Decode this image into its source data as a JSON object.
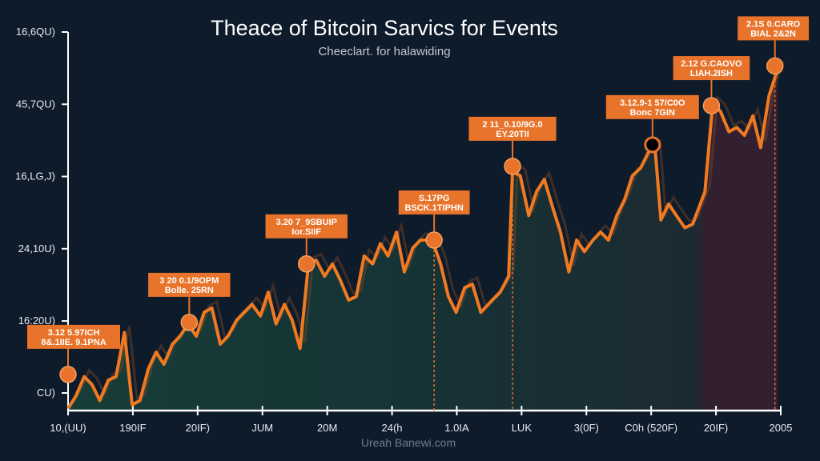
{
  "chart_data": {
    "type": "line",
    "title": "Theace of Bitcoin Sarvics for Events",
    "subtitle": "Cheeclart. for halawiding",
    "footer": "Ureah Banewi.com",
    "xlabel": "",
    "ylabel": "",
    "x_tick_labels": [
      "10,(UU)",
      "190IF",
      "20IF)",
      "JUM",
      "20M",
      "24(h",
      "1.0IA",
      "LUK",
      "3(0F)",
      "C0h (520F)",
      "20IF)",
      "2005"
    ],
    "y_ticks": [
      {
        "value": 0,
        "label": "CU)"
      },
      {
        "value": 1,
        "label": "16:20U)"
      },
      {
        "value": 2,
        "label": "24,10U)"
      },
      {
        "value": 3,
        "label": "16,LG,J)"
      },
      {
        "value": 4,
        "label": "45,7QU)"
      },
      {
        "value": 5,
        "label": "16,6QU)"
      }
    ],
    "xlim": [
      0,
      11
    ],
    "ylim": [
      -0.24,
      5.0
    ],
    "grid": false,
    "colors": {
      "line": "#f07a22",
      "background": "#0e1b2b",
      "label_box": "#e8732a",
      "area_left": "#1e5a43",
      "area_right": "#4a2233"
    },
    "series": [
      {
        "x": [
          0,
          0.12,
          0.25,
          0.37,
          0.49,
          0.62,
          0.74,
          0.87,
          0.99,
          1.11,
          1.24,
          1.36,
          1.48,
          1.61,
          1.73,
          1.85,
          1.98,
          2.1,
          2.22,
          2.35,
          2.47,
          2.6,
          2.72,
          2.84,
          2.97,
          3.09,
          3.21,
          3.34,
          3.46,
          3.58,
          3.71,
          3.83,
          3.96,
          4.08,
          4.2,
          4.33,
          4.45,
          4.57,
          4.7,
          4.82,
          4.94,
          5.07,
          5.19,
          5.32,
          5.44,
          5.62,
          5.75,
          5.87,
          5.99,
          6.12,
          6.24,
          6.37,
          6.55,
          6.67,
          6.8,
          6.86,
          6.98,
          7.11,
          7.23,
          7.35,
          7.48,
          7.6,
          7.73,
          7.85,
          7.97,
          8.1,
          8.22,
          8.34,
          8.47,
          8.59,
          8.71,
          8.84,
          8.96,
          9.06,
          9.15,
          9.27,
          9.39,
          9.52,
          9.64,
          9.83,
          9.95,
          10.07,
          10.2,
          10.32,
          10.44,
          10.57,
          10.69,
          10.82,
          10.96
        ],
        "y": [
          -0.21,
          -0.04,
          0.23,
          0.12,
          -0.1,
          0.18,
          0.23,
          0.84,
          -0.16,
          -0.1,
          0.34,
          0.57,
          0.4,
          0.68,
          0.79,
          0.96,
          0.79,
          1.12,
          1.18,
          0.68,
          0.79,
          1.01,
          1.12,
          1.23,
          1.07,
          1.4,
          0.96,
          1.23,
          1.01,
          0.62,
          1.79,
          1.84,
          1.62,
          1.79,
          1.57,
          1.29,
          1.34,
          1.9,
          1.79,
          2.07,
          1.9,
          2.23,
          1.68,
          2.01,
          2.12,
          2.12,
          1.79,
          1.34,
          1.12,
          1.46,
          1.51,
          1.12,
          1.29,
          1.4,
          1.62,
          3.07,
          3.01,
          2.46,
          2.79,
          2.96,
          2.57,
          2.23,
          1.68,
          2.12,
          1.96,
          2.12,
          2.23,
          2.12,
          2.46,
          2.68,
          3.01,
          3.12,
          3.34,
          3.4,
          2.4,
          2.62,
          2.46,
          2.29,
          2.34,
          2.79,
          4.01,
          3.9,
          3.62,
          3.68,
          3.57,
          3.84,
          3.4,
          4.12,
          4.51
        ]
      }
    ],
    "annotations": [
      {
        "x": 0,
        "y": 0.26,
        "lines": [
          "3.12 5.97ICH",
          "8&.1IIE. 9.1PNA"
        ],
        "dashed": false,
        "marker": "orange"
      },
      {
        "x": 1.87,
        "y": 0.98,
        "lines": [
          "3 20 0.1/9OPM",
          "Bolle. 25RN"
        ],
        "dashed": false,
        "marker": "orange"
      },
      {
        "x": 3.68,
        "y": 1.79,
        "lines": [
          "3.20 7_9SBUIP",
          "Ior.SIIF"
        ],
        "dashed": false,
        "marker": "orange"
      },
      {
        "x": 5.65,
        "y": 2.12,
        "lines": [
          "S.17PG",
          "BSCK.1TIPHN"
        ],
        "dashed": true,
        "marker": "orange"
      },
      {
        "x": 6.86,
        "y": 3.14,
        "lines": [
          "2 11_0.10/9G.0",
          "EY.20TII"
        ],
        "dashed": true,
        "marker": "orange"
      },
      {
        "x": 9.02,
        "y": 3.44,
        "lines": [
          "3.12.9-1 57/C0O",
          "Bonc 7GIN"
        ],
        "dashed": false,
        "marker": "black"
      },
      {
        "x": 9.93,
        "y": 3.98,
        "lines": [
          "2.12 G.CAOVO",
          "LIAH.2ISH"
        ],
        "dashed": false,
        "marker": "orange"
      },
      {
        "x": 10.91,
        "y": 4.53,
        "lines": [
          "2.1S 0.CARO",
          "BIAL 2&2N"
        ],
        "dashed": true,
        "marker": "orange"
      }
    ]
  }
}
